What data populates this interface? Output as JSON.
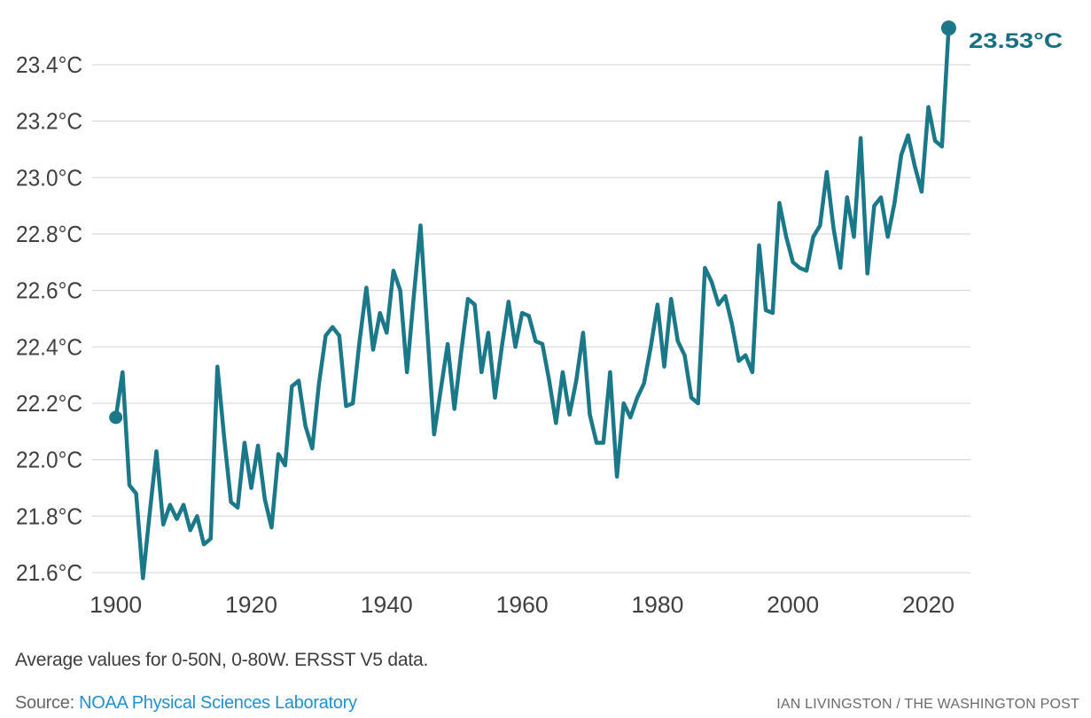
{
  "chart_data": {
    "type": "line",
    "title": "",
    "xlabel": "",
    "ylabel": "",
    "unit": "°C",
    "grid": "horizontal",
    "legend_position": "none",
    "ylim": [
      21.5,
      23.6
    ],
    "xlim": [
      1896,
      2026
    ],
    "x_ticks": [
      1900,
      1920,
      1940,
      1960,
      1980,
      2000,
      2020
    ],
    "y_tick_values": [
      21.6,
      21.8,
      22.0,
      22.2,
      22.4,
      22.6,
      22.8,
      23.0,
      23.2,
      23.4
    ],
    "y_tick_labels": [
      "21.6°C",
      "21.8°C",
      "22.0°C",
      "22.2°C",
      "22.4°C",
      "22.6°C",
      "22.8°C",
      "23.0°C",
      "23.2°C",
      "23.4°C"
    ],
    "years": [
      1900,
      1901,
      1902,
      1903,
      1904,
      1905,
      1906,
      1907,
      1908,
      1909,
      1910,
      1911,
      1912,
      1913,
      1914,
      1915,
      1916,
      1917,
      1918,
      1919,
      1920,
      1921,
      1922,
      1923,
      1924,
      1925,
      1926,
      1927,
      1928,
      1929,
      1930,
      1931,
      1932,
      1933,
      1934,
      1935,
      1936,
      1937,
      1938,
      1939,
      1940,
      1941,
      1942,
      1943,
      1944,
      1945,
      1946,
      1947,
      1948,
      1949,
      1950,
      1951,
      1952,
      1953,
      1954,
      1955,
      1956,
      1957,
      1958,
      1959,
      1960,
      1961,
      1962,
      1963,
      1964,
      1965,
      1966,
      1967,
      1968,
      1969,
      1970,
      1971,
      1972,
      1973,
      1974,
      1975,
      1976,
      1977,
      1978,
      1979,
      1980,
      1981,
      1982,
      1983,
      1984,
      1985,
      1986,
      1987,
      1988,
      1989,
      1990,
      1991,
      1992,
      1993,
      1994,
      1995,
      1996,
      1997,
      1998,
      1999,
      2000,
      2001,
      2002,
      2003,
      2004,
      2005,
      2006,
      2007,
      2008,
      2009,
      2010,
      2011,
      2012,
      2013,
      2014,
      2015,
      2016,
      2017,
      2018,
      2019,
      2020,
      2021,
      2022,
      2023
    ],
    "values": [
      22.15,
      22.31,
      21.91,
      21.88,
      21.58,
      21.81,
      22.03,
      21.77,
      21.84,
      21.79,
      21.84,
      21.75,
      21.8,
      21.7,
      21.72,
      22.33,
      22.08,
      21.85,
      21.83,
      22.06,
      21.9,
      22.05,
      21.86,
      21.76,
      22.02,
      21.98,
      22.26,
      22.28,
      22.12,
      22.04,
      22.27,
      22.44,
      22.47,
      22.44,
      22.19,
      22.2,
      22.42,
      22.61,
      22.39,
      22.52,
      22.45,
      22.67,
      22.6,
      22.31,
      22.58,
      22.83,
      22.46,
      22.09,
      22.25,
      22.41,
      22.18,
      22.38,
      22.57,
      22.55,
      22.31,
      22.45,
      22.22,
      22.4,
      22.56,
      22.4,
      22.52,
      22.51,
      22.42,
      22.41,
      22.28,
      22.13,
      22.31,
      22.16,
      22.28,
      22.45,
      22.16,
      22.06,
      22.06,
      22.31,
      21.94,
      22.2,
      22.15,
      22.22,
      22.27,
      22.4,
      22.55,
      22.33,
      22.57,
      22.42,
      22.37,
      22.22,
      22.2,
      22.68,
      22.63,
      22.55,
      22.58,
      22.48,
      22.35,
      22.37,
      22.31,
      22.76,
      22.53,
      22.52,
      22.91,
      22.79,
      22.7,
      22.68,
      22.67,
      22.79,
      22.83,
      23.02,
      22.82,
      22.68,
      22.93,
      22.79,
      23.14,
      22.66,
      22.9,
      22.93,
      22.79,
      22.91,
      23.08,
      23.15,
      23.04,
      22.95,
      23.25,
      23.13,
      23.11,
      23.53
    ],
    "first_point": {
      "year": 1900,
      "value": 22.15,
      "has_dot": true
    },
    "last_point": {
      "year": 2023,
      "value": 23.53,
      "label": "23.53°C",
      "has_dot": true
    }
  },
  "notes": {
    "methodology": "Average values for 0-50N, 0-80W. ERSST V5 data."
  },
  "source": {
    "label": "Source:",
    "link_text": "NOAA Physical Sciences Laboratory"
  },
  "attribution": "IAN LIVINGSTON / THE WASHINGTON POST",
  "colors": {
    "line": "#1a7888",
    "grid": "#d9d9d9",
    "axis_text": "#404040",
    "annotation_text": "#166f80",
    "caption_text": "#3d3d3d",
    "source_text": "#666666",
    "link": "#2191d0",
    "attribution_text": "#6b6b6b",
    "background": "#ffffff"
  }
}
